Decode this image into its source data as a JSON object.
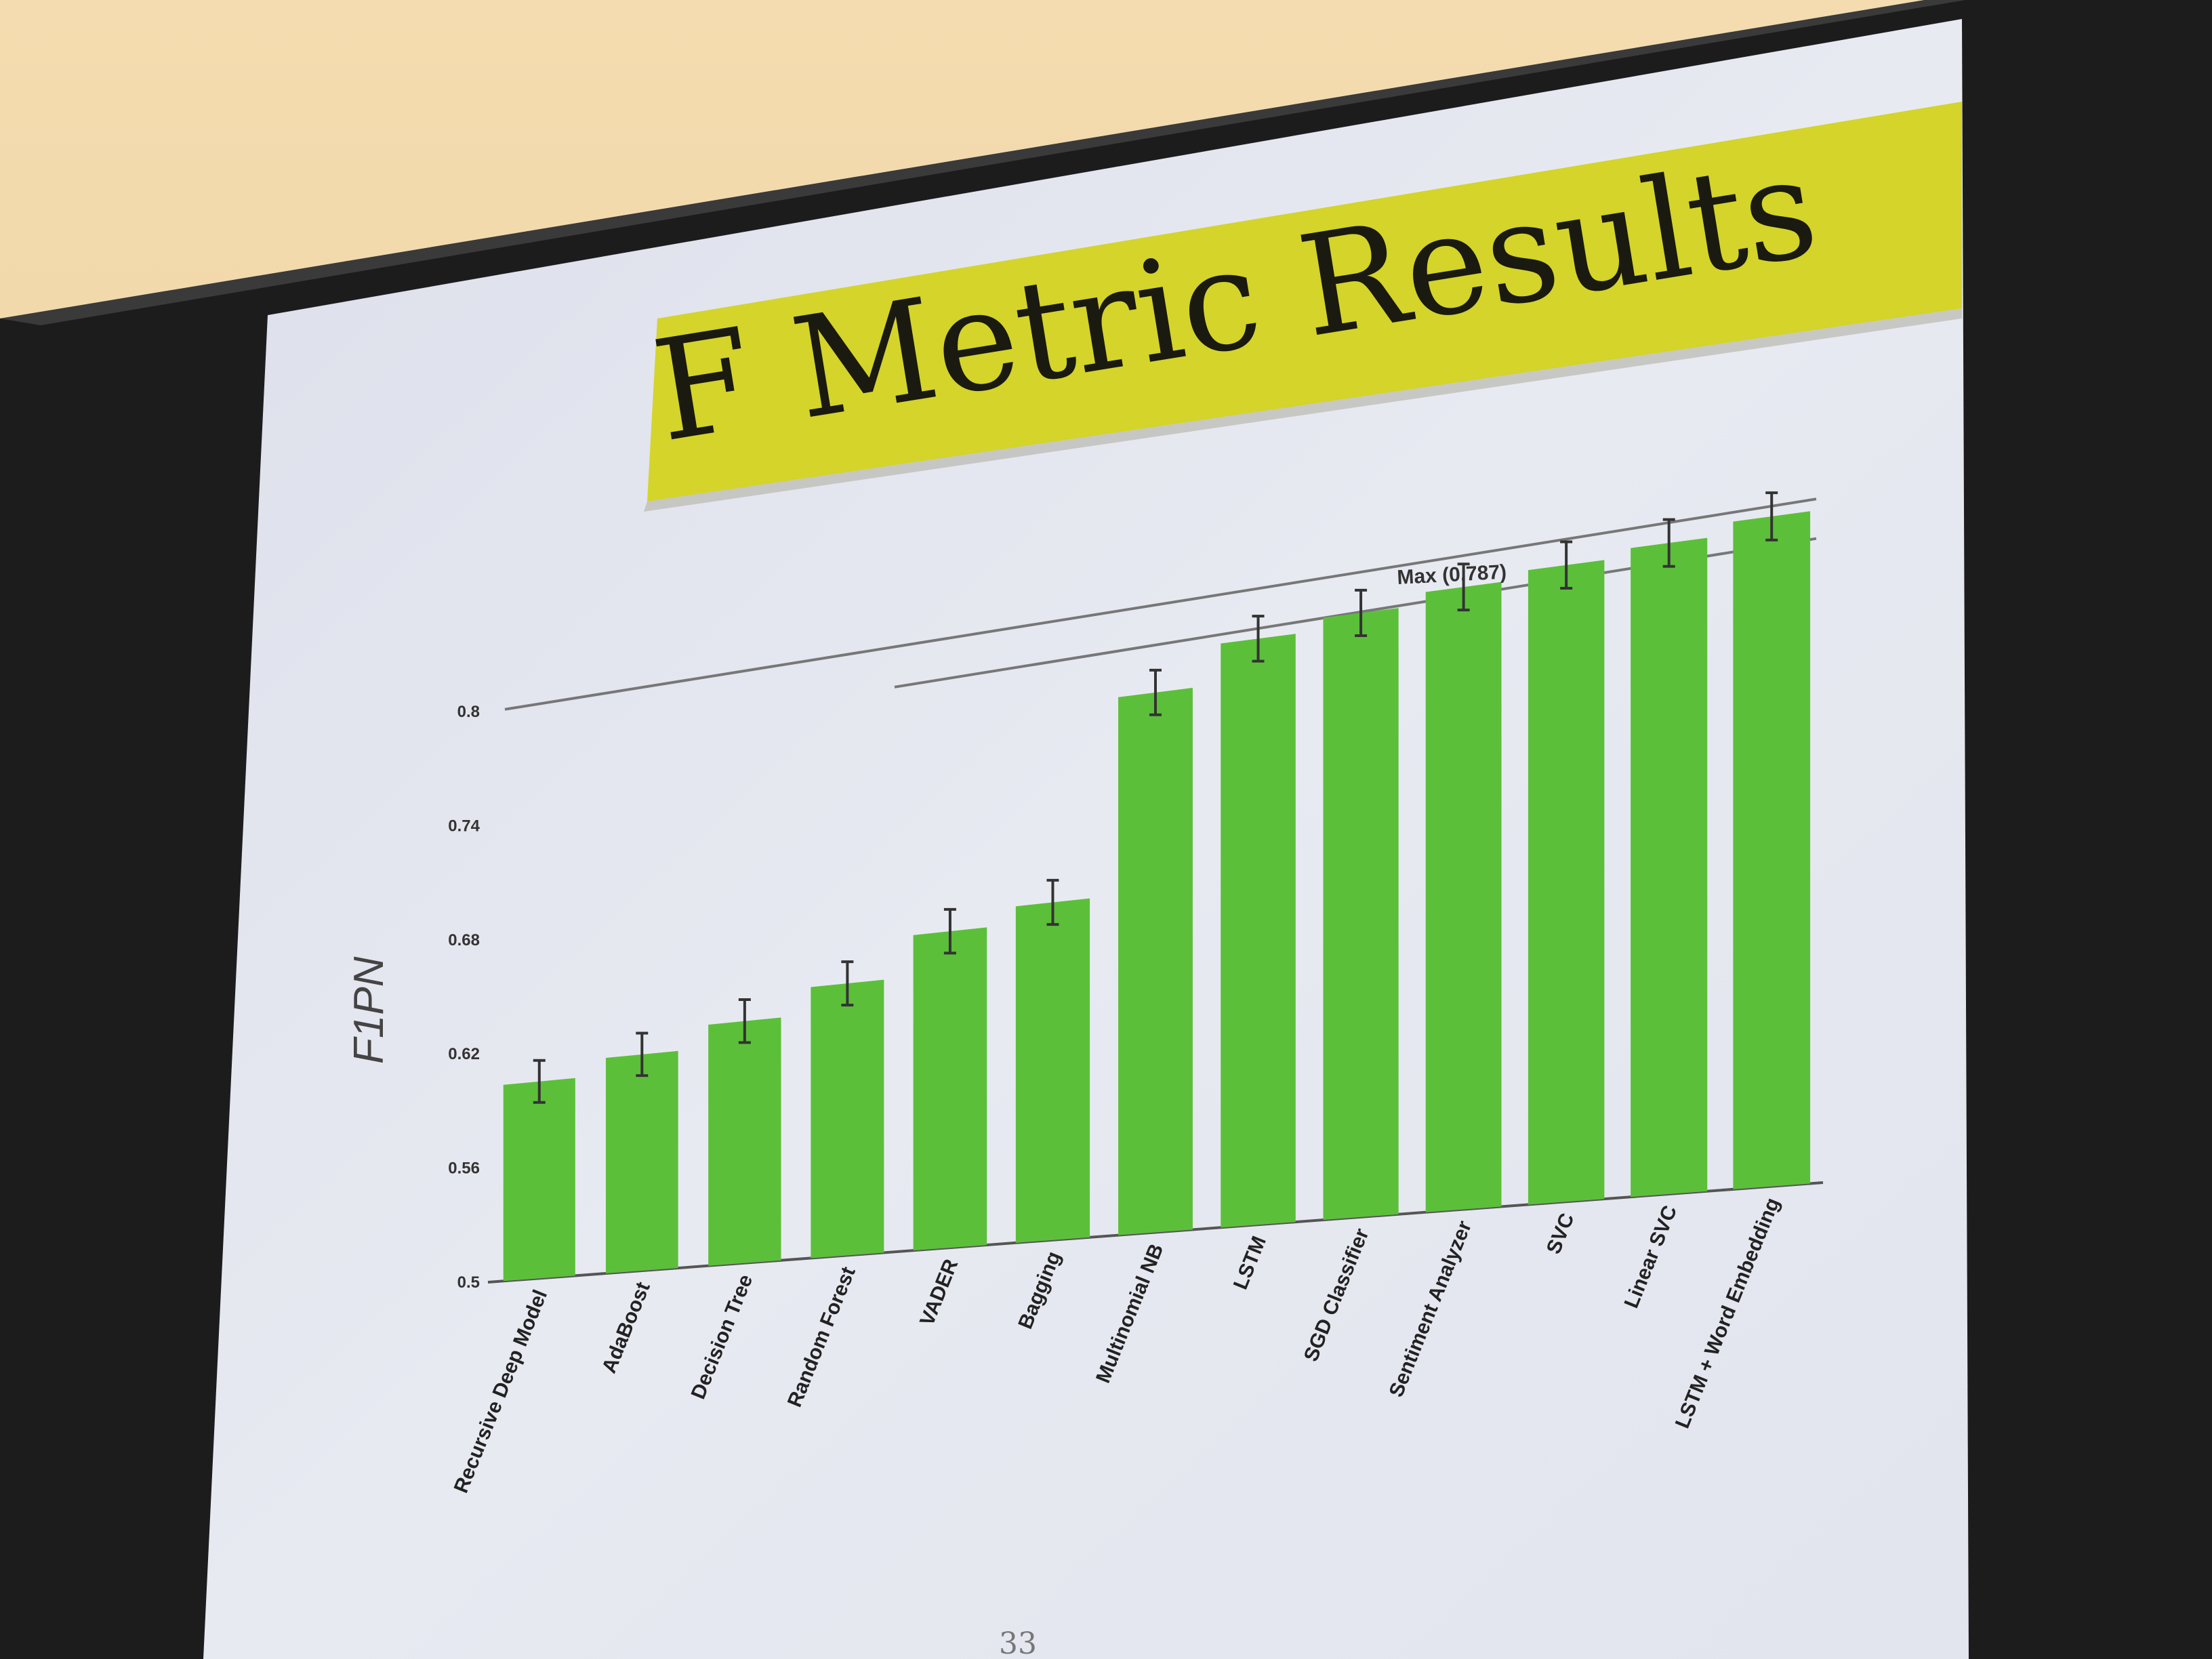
{
  "slide": {
    "title": "F Metric Results",
    "page_number": "33"
  },
  "colors": {
    "title_band": "#d4d42a",
    "bar": "#5cbf3a",
    "slide_bg": "#e6e8f0",
    "bezel": "#1c1c1c"
  },
  "chart_data": {
    "type": "bar",
    "title": "",
    "xlabel": "",
    "ylabel": "F1PN",
    "ylim": [
      0.5,
      0.8
    ],
    "yticks": [
      "0.5",
      "0.56",
      "0.62",
      "0.68",
      "0.74",
      "0.8"
    ],
    "categories": [
      "Recursive Deep Model",
      "AdaBoost",
      "Decision Tree",
      "Random Forest",
      "VADER",
      "Bagging",
      "Multinomial NB",
      "LSTM",
      "SGD Classifier",
      "Sentiment Analyzer",
      "SVC",
      "Linear SVC",
      "LSTM + Word Embedding"
    ],
    "values": [
      0.603,
      0.612,
      0.624,
      0.638,
      0.659,
      0.668,
      0.766,
      0.786,
      0.792,
      0.798,
      0.802,
      0.806,
      0.812
    ],
    "error": [
      0.011,
      0.011,
      0.011,
      0.011,
      0.011,
      0.011,
      0.011,
      0.011,
      0.011,
      0.011,
      0.011,
      0.011,
      0.011
    ],
    "reference_lines": [
      {
        "label": "",
        "value": 0.8
      },
      {
        "label": "Max (0.787)",
        "value": 0.787
      }
    ],
    "grid": false,
    "legend": "none"
  }
}
